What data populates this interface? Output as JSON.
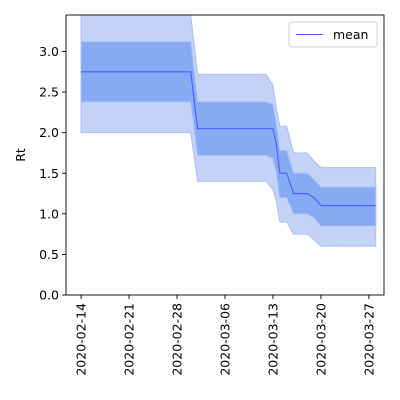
{
  "chart_data": {
    "type": "area",
    "title": "",
    "xlabel": "",
    "ylabel": "Rt",
    "x_tick_labels": [
      "2020-02-14",
      "2020-02-21",
      "2020-02-28",
      "2020-03-06",
      "2020-03-13",
      "2020-03-20",
      "2020-03-27"
    ],
    "x_tick_days": [
      0,
      7,
      14,
      21,
      28,
      35,
      42
    ],
    "y_tick_labels": [
      "0.0",
      "0.5",
      "1.0",
      "1.5",
      "2.0",
      "2.5",
      "3.0"
    ],
    "ylim": [
      0,
      3.45
    ],
    "xlim_days": [
      -2.2,
      44.2
    ],
    "grid": false,
    "legend_position": "top-right",
    "colors": {
      "mean": "#4c5bff",
      "inner_band": "#88aaf4",
      "outer_band": "#c3d3f7",
      "band_edge": "#a9c0f0"
    },
    "series": [
      {
        "name": "mean",
        "x_days": [
          0,
          16,
          17,
          27,
          28,
          28.5,
          29,
          30,
          31,
          33,
          34,
          35,
          36,
          37,
          43
        ],
        "values": [
          2.75,
          2.75,
          2.05,
          2.05,
          2.05,
          1.85,
          1.5,
          1.5,
          1.25,
          1.25,
          1.2,
          1.1,
          1.1,
          1.1,
          1.1
        ]
      }
    ],
    "bands": [
      {
        "level": "outer",
        "x_days": [
          0,
          16,
          17,
          27,
          28,
          28.5,
          29,
          30,
          31,
          33,
          34,
          35,
          36,
          37,
          43
        ],
        "lower": [
          2.0,
          2.0,
          1.4,
          1.4,
          1.3,
          1.15,
          0.9,
          0.9,
          0.75,
          0.75,
          0.68,
          0.6,
          0.6,
          0.6,
          0.6
        ],
        "upper": [
          3.45,
          3.45,
          2.72,
          2.72,
          2.58,
          2.3,
          2.08,
          2.08,
          1.75,
          1.75,
          1.65,
          1.57,
          1.57,
          1.57,
          1.57
        ]
      },
      {
        "level": "inner",
        "x_days": [
          0,
          16,
          17,
          27,
          28,
          28.5,
          29,
          30,
          31,
          33,
          34,
          35,
          36,
          37,
          43
        ],
        "lower": [
          2.38,
          2.38,
          1.72,
          1.72,
          1.68,
          1.5,
          1.2,
          1.2,
          1.0,
          1.0,
          0.95,
          0.85,
          0.85,
          0.85,
          0.85
        ],
        "upper": [
          3.12,
          3.12,
          2.38,
          2.38,
          2.35,
          2.1,
          1.78,
          1.78,
          1.5,
          1.5,
          1.42,
          1.33,
          1.33,
          1.33,
          1.33
        ]
      }
    ],
    "legend": [
      {
        "label": "mean",
        "series": "mean"
      }
    ]
  }
}
